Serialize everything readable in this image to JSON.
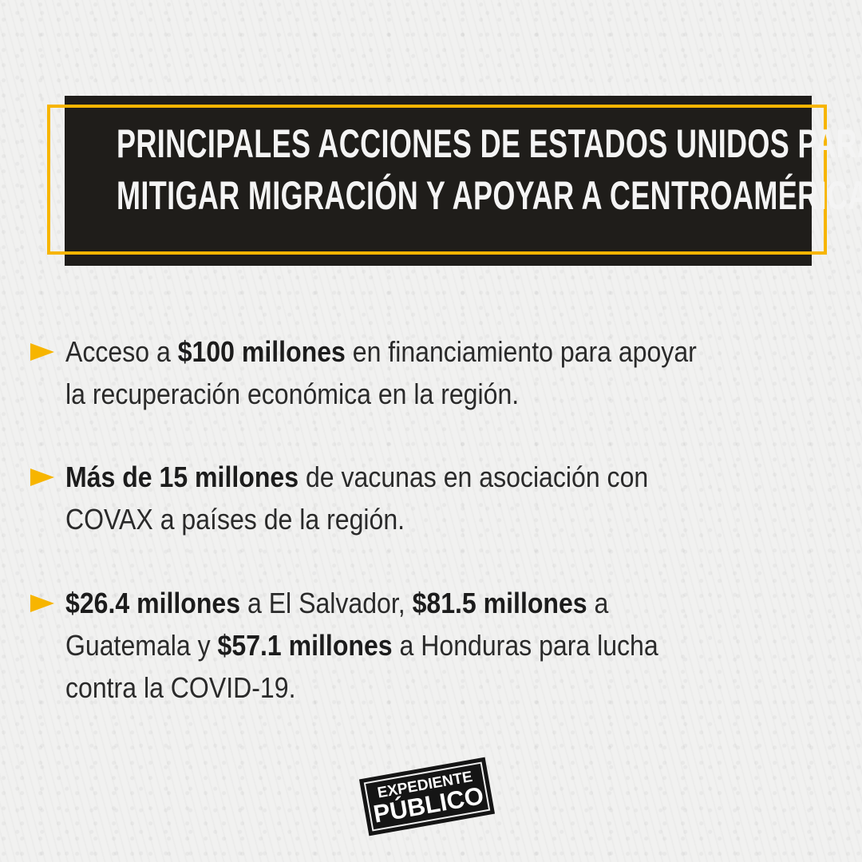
{
  "header": {
    "title_lines": [
      "PRINCIPALES ACCIONES DE ESTADOS UNIDOS PARA",
      "MITIGAR MIGRACIÓN Y APOYAR A CENTROAMÉRICA:"
    ]
  },
  "bullets": [
    {
      "icon": "arrow-right-icon",
      "lines": [
        [
          {
            "t": "Acceso a ",
            "b": false
          },
          {
            "t": "$100 millones",
            "b": true
          },
          {
            "t": " en financiamiento para apoyar",
            "b": false
          }
        ],
        [
          {
            "t": "la recuperación económica en la región.",
            "b": false
          }
        ]
      ]
    },
    {
      "icon": "arrow-right-icon",
      "lines": [
        [
          {
            "t": "Más de 15 millones",
            "b": true
          },
          {
            "t": " de vacunas en asociación con",
            "b": false
          }
        ],
        [
          {
            "t": "COVAX a países de la región.",
            "b": false
          }
        ]
      ]
    },
    {
      "icon": "arrow-right-icon",
      "lines": [
        [
          {
            "t": "$26.4 millones",
            "b": true
          },
          {
            "t": " a El Salvador, ",
            "b": false
          },
          {
            "t": "$81.5 millones",
            "b": true
          },
          {
            "t": " a",
            "b": false
          }
        ],
        [
          {
            "t": "Guatemala y ",
            "b": false
          },
          {
            "t": "$57.1 millones",
            "b": true
          },
          {
            "t": " a Honduras para lucha",
            "b": false
          }
        ],
        [
          {
            "t": "contra la COVID-19.",
            "b": false
          }
        ]
      ]
    }
  ],
  "logo": {
    "line1": "EXPEDIENTE",
    "line2": "PÚBLICO"
  },
  "colors": {
    "accent": "#f7b500",
    "header_bg": "#1f1d1a",
    "background": "#f1f1f0"
  }
}
